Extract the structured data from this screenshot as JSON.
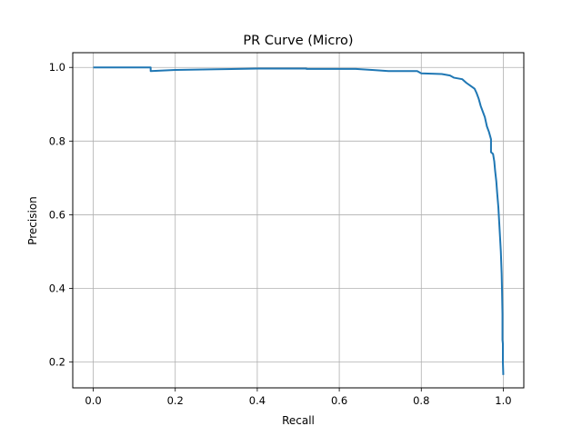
{
  "chart_data": {
    "type": "line",
    "title": "PR Curve (Micro)",
    "xlabel": "Recall",
    "ylabel": "Precision",
    "xlim": [
      -0.05,
      1.05
    ],
    "ylim": [
      0.13,
      1.04
    ],
    "grid": true,
    "xticks": [
      0.0,
      0.2,
      0.4,
      0.6,
      0.8,
      1.0
    ],
    "xtick_labels": [
      "0.0",
      "0.2",
      "0.4",
      "0.6",
      "0.8",
      "1.0"
    ],
    "yticks": [
      0.2,
      0.4,
      0.6,
      0.8,
      1.0
    ],
    "ytick_labels": [
      "0.2",
      "0.4",
      "0.6",
      "0.8",
      "1.0"
    ],
    "line_color": "#1f77b4",
    "series": [
      {
        "x": [
          0.0,
          0.14,
          0.14,
          0.2,
          0.3,
          0.4,
          0.52,
          0.52,
          0.64,
          0.68,
          0.72,
          0.79,
          0.8,
          0.85,
          0.87,
          0.88,
          0.9,
          0.91,
          0.92,
          0.93,
          0.935,
          0.94,
          0.945,
          0.95,
          0.955,
          0.96,
          0.965,
          0.97,
          0.97,
          0.975,
          0.978,
          0.98,
          0.983,
          0.985,
          0.988,
          0.99,
          0.992,
          0.994,
          0.996,
          0.997,
          0.998,
          0.998,
          0.999,
          0.999,
          1.0
        ],
        "y": [
          1.0,
          1.0,
          0.99,
          0.993,
          0.995,
          0.997,
          0.997,
          0.996,
          0.996,
          0.993,
          0.99,
          0.99,
          0.984,
          0.982,
          0.978,
          0.972,
          0.968,
          0.958,
          0.95,
          0.942,
          0.93,
          0.915,
          0.895,
          0.88,
          0.865,
          0.84,
          0.825,
          0.805,
          0.77,
          0.765,
          0.745,
          0.72,
          0.69,
          0.66,
          0.62,
          0.58,
          0.54,
          0.5,
          0.44,
          0.39,
          0.33,
          0.26,
          0.25,
          0.2,
          0.165
        ]
      }
    ]
  }
}
